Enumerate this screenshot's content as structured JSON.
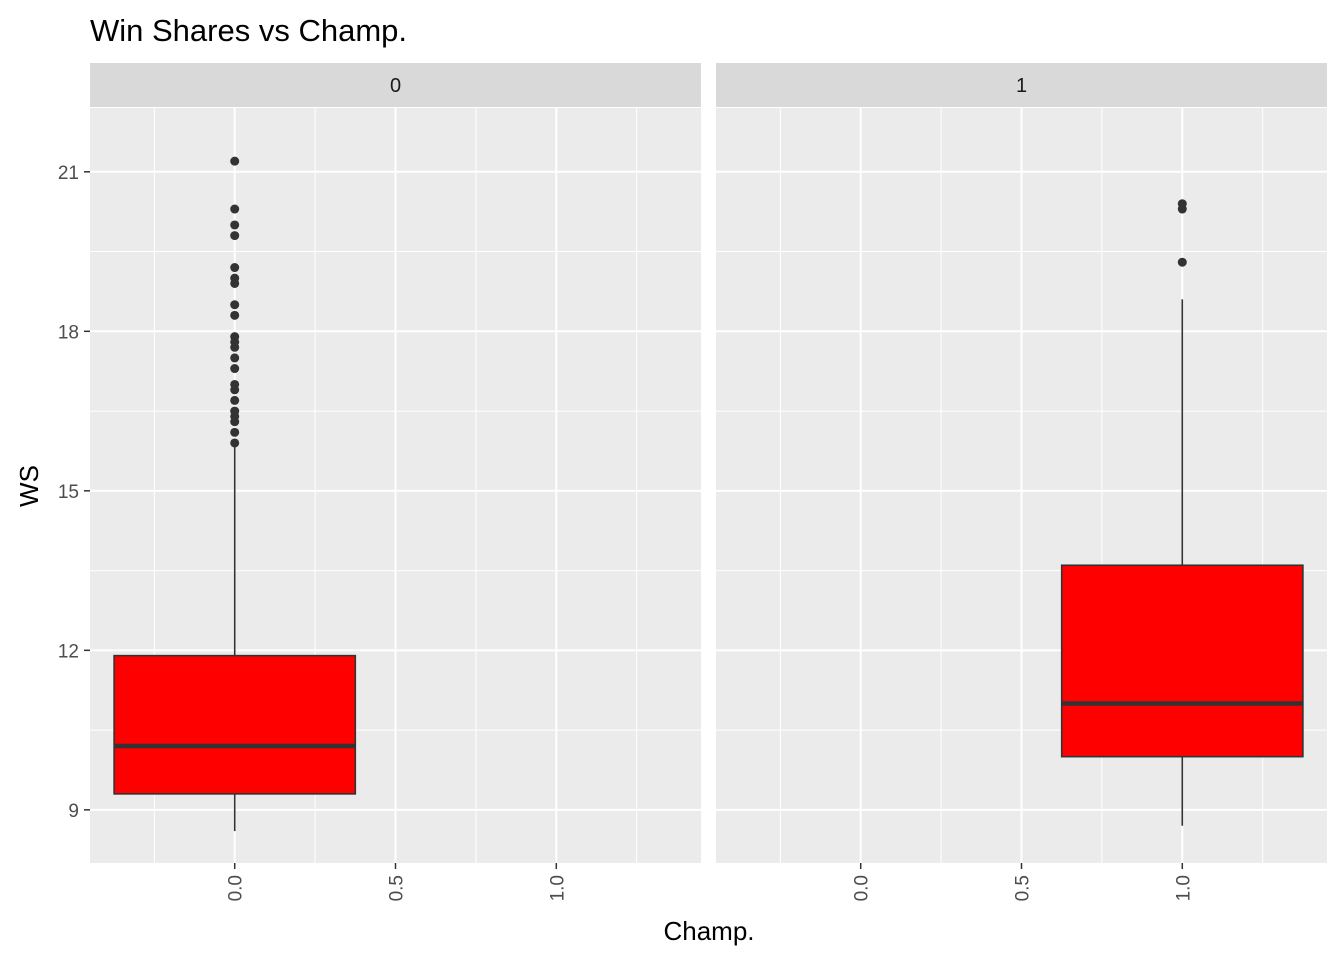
{
  "chart_data": {
    "type": "boxplot",
    "title": "Win Shares vs Champ.",
    "xlabel": "Champ.",
    "ylabel": "WS",
    "facet_variable": "Champ.",
    "x_ticks": [
      "0.0",
      "0.5",
      "1.0"
    ],
    "y_ticks": [
      "9",
      "12",
      "15",
      "18",
      "21"
    ],
    "xlim": [
      -0.45,
      1.45
    ],
    "ylim": [
      8.0,
      22.2
    ],
    "grid": true,
    "colors": {
      "box_fill": "#ff0000",
      "box_line": "#333333",
      "panel_bg": "#ebebeb",
      "strip_bg": "#d9d9d9",
      "grid": "#ffffff"
    },
    "panels": [
      {
        "strip_label": "0",
        "x": 0.0,
        "box": {
          "lower_whisker": 8.6,
          "q1": 9.3,
          "median": 10.2,
          "q3": 11.9,
          "upper_whisker": 15.9
        },
        "outliers": [
          15.9,
          16.1,
          16.3,
          16.4,
          16.5,
          16.7,
          16.9,
          17.0,
          17.3,
          17.5,
          17.7,
          17.8,
          17.9,
          18.3,
          18.5,
          18.9,
          19.0,
          19.2,
          19.8,
          20.0,
          20.3,
          21.2
        ]
      },
      {
        "strip_label": "1",
        "x": 1.0,
        "box": {
          "lower_whisker": 8.7,
          "q1": 10.0,
          "median": 11.0,
          "q3": 13.6,
          "upper_whisker": 18.6
        },
        "outliers": [
          19.3,
          20.3,
          20.4
        ]
      }
    ]
  }
}
